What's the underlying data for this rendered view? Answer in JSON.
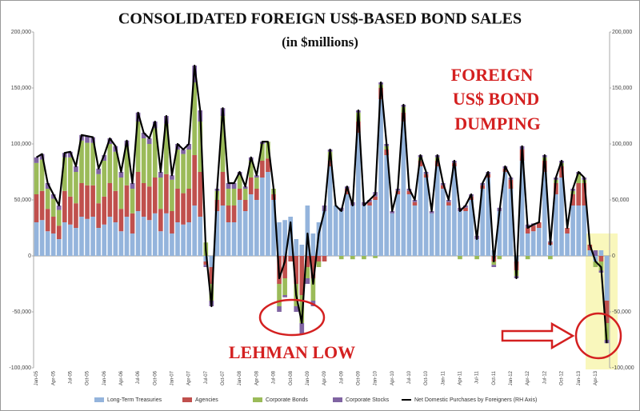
{
  "chart_data": {
    "type": "stacked_bar_line",
    "title": "CONSOLIDATED FOREIGN US$-BASED BOND SALES",
    "subtitle": "(in $millions)",
    "annotations": [
      "FOREIGN",
      "US$ BOND",
      "DUMPING",
      "LEHMAN LOW"
    ],
    "categories": [
      "Jan-05",
      null,
      null,
      "Apr-05",
      null,
      null,
      "Jul-05",
      null,
      null,
      "Oct-05",
      null,
      null,
      "Jan-06",
      null,
      null,
      "Apr-06",
      null,
      null,
      "Jul-06",
      null,
      null,
      "Oct-06",
      null,
      null,
      "Jan-07",
      null,
      null,
      "Apr-07",
      null,
      null,
      "Jul-07",
      null,
      null,
      "Oct-07",
      null,
      null,
      "Jan-08",
      null,
      null,
      "Apr-08",
      null,
      null,
      "Jul-08",
      null,
      null,
      "Oct-08",
      null,
      null,
      "Jan-09",
      null,
      null,
      "Apr-09",
      null,
      null,
      "Jul-09",
      null,
      null,
      "Oct-09",
      null,
      null,
      "Jan-10",
      null,
      null,
      "Apr-10",
      null,
      null,
      "Jul-10",
      null,
      null,
      "Oct-10",
      null,
      null,
      "Jan-11",
      null,
      null,
      "Apr-11",
      null,
      null,
      "Jul-11",
      null,
      null,
      "Oct-11",
      null,
      null,
      "Jan-12",
      null,
      null,
      "Apr-12",
      null,
      null,
      "Jul-12",
      null,
      null,
      "Oct-12",
      null,
      null,
      "Jan-13",
      null,
      null,
      "Apr-13",
      null,
      null
    ],
    "series": [
      {
        "name": "Long-Term Treasuries",
        "color": "#94b4dc",
        "values": [
          30000,
          32000,
          22000,
          20000,
          15000,
          30000,
          28000,
          25000,
          35000,
          33000,
          35000,
          25000,
          28000,
          35000,
          30000,
          22000,
          35000,
          20000,
          40000,
          35000,
          32000,
          38000,
          22000,
          38000,
          20000,
          30000,
          28000,
          30000,
          45000,
          35000,
          -5000,
          -10000,
          40000,
          45000,
          30000,
          30000,
          50000,
          40000,
          55000,
          50000,
          70000,
          75000,
          50000,
          30000,
          32000,
          35000,
          15000,
          10000,
          45000,
          20000,
          30000,
          40000,
          80000,
          45000,
          40000,
          55000,
          45000,
          110000,
          45000,
          45000,
          50000,
          140000,
          90000,
          38000,
          55000,
          120000,
          55000,
          45000,
          80000,
          70000,
          38000,
          80000,
          60000,
          45000,
          80000,
          40000,
          40000,
          50000,
          15000,
          60000,
          70000,
          5000,
          40000,
          75000,
          60000,
          -5000,
          85000,
          20000,
          22000,
          25000,
          75000,
          10000,
          55000,
          70000,
          20000,
          45000,
          45000,
          45000,
          5000,
          -5000,
          5000,
          -40000
        ]
      },
      {
        "name": "Agencies",
        "color": "#c0504d",
        "values": [
          25000,
          26000,
          20000,
          15000,
          12000,
          28000,
          25000,
          22000,
          30000,
          30000,
          28000,
          22000,
          25000,
          30000,
          28000,
          20000,
          28000,
          18000,
          35000,
          30000,
          30000,
          32000,
          20000,
          35000,
          20000,
          30000,
          28000,
          30000,
          45000,
          40000,
          -3000,
          -15000,
          10000,
          30000,
          15000,
          15000,
          10000,
          10000,
          15000,
          10000,
          15000,
          12000,
          5000,
          -25000,
          -20000,
          -5000,
          -25000,
          -35000,
          -10000,
          -20000,
          -5000,
          -5000,
          5000,
          0,
          0,
          5000,
          0,
          10000,
          0,
          3000,
          3000,
          10000,
          5000,
          0,
          3000,
          8000,
          3000,
          3000,
          5000,
          3000,
          0,
          5000,
          3000,
          3000,
          3000,
          0,
          3000,
          3000,
          0,
          3000,
          3000,
          -5000,
          0,
          3000,
          8000,
          -8000,
          10000,
          5000,
          5000,
          5000,
          10000,
          2000,
          10000,
          10000,
          5000,
          10000,
          20000,
          20000,
          5000,
          0,
          -5000,
          -20000
        ]
      },
      {
        "name": "Corporate Bonds",
        "color": "#9bbb59",
        "values": [
          28000,
          28000,
          18000,
          16000,
          14000,
          30000,
          35000,
          28000,
          38000,
          38000,
          38000,
          26000,
          32000,
          35000,
          35000,
          28000,
          35000,
          22000,
          45000,
          40000,
          38000,
          44000,
          28000,
          45000,
          28000,
          35000,
          35000,
          35000,
          65000,
          45000,
          12000,
          -15000,
          8000,
          50000,
          15000,
          15000,
          12000,
          10000,
          15000,
          10000,
          15000,
          15000,
          5000,
          -20000,
          -15000,
          0,
          -20000,
          -25000,
          -10000,
          -20000,
          -5000,
          0,
          8000,
          0,
          -3000,
          0,
          -3000,
          8000,
          -3000,
          0,
          -2000,
          3000,
          3000,
          0,
          0,
          5000,
          0,
          0,
          3000,
          0,
          0,
          3000,
          0,
          0,
          0,
          -3000,
          0,
          0,
          -3000,
          0,
          0,
          -3000,
          -3000,
          0,
          0,
          -5000,
          0,
          -3000,
          0,
          0,
          3000,
          -3000,
          3000,
          3000,
          0,
          3000,
          8000,
          3000,
          0,
          -5000,
          -8000,
          -15000
        ]
      },
      {
        "name": "Corporate Stocks",
        "color": "#8064a2",
        "values": [
          5000,
          5000,
          5000,
          4000,
          4000,
          4000,
          5000,
          5000,
          5000,
          6000,
          5000,
          5000,
          5000,
          5000,
          5000,
          5000,
          5000,
          5000,
          8000,
          5000,
          5000,
          6000,
          5000,
          7000,
          4000,
          5000,
          4000,
          5000,
          15000,
          10000,
          -2000,
          -5000,
          2000,
          7000,
          5000,
          5000,
          3000,
          2000,
          3000,
          2000,
          2000,
          0,
          0,
          -5000,
          -2000,
          0,
          -5000,
          -10000,
          -5000,
          -5000,
          0,
          5000,
          2000,
          0,
          3000,
          2000,
          3000,
          2000,
          3000,
          2000,
          4000,
          2000,
          2000,
          2000,
          2000,
          2000,
          2000,
          2000,
          2000,
          2000,
          2000,
          2000,
          2000,
          2000,
          2000,
          3000,
          2000,
          2000,
          3000,
          2000,
          2000,
          -2000,
          3000,
          2000,
          2000,
          -2000,
          3000,
          3000,
          2000,
          0,
          2000,
          1000,
          2000,
          2000,
          0,
          2000,
          2000,
          2000,
          0,
          5000,
          -2000,
          -3000
        ]
      },
      {
        "name": "Net Domestic Purchases by Foreigners (RH Axis)",
        "color": "#000000",
        "axis": "y2",
        "values": [
          88000,
          91000,
          65000,
          55000,
          45000,
          92000,
          93000,
          80000,
          108000,
          107000,
          106000,
          78000,
          90000,
          105000,
          98000,
          75000,
          103000,
          65000,
          128000,
          110000,
          105000,
          120000,
          75000,
          125000,
          72000,
          100000,
          95000,
          100000,
          170000,
          130000,
          5000,
          -45000,
          60000,
          132000,
          65000,
          65000,
          75000,
          62000,
          88000,
          72000,
          102000,
          102000,
          60000,
          -20000,
          -5000,
          30000,
          -35000,
          -60000,
          20000,
          -25000,
          20000,
          40000,
          95000,
          45000,
          40000,
          62000,
          45000,
          130000,
          45000,
          50000,
          55000,
          155000,
          100000,
          40000,
          60000,
          135000,
          60000,
          50000,
          90000,
          75000,
          40000,
          90000,
          65000,
          50000,
          85000,
          40000,
          45000,
          55000,
          15000,
          65000,
          75000,
          -5000,
          40000,
          80000,
          70000,
          -20000,
          98000,
          25000,
          28000,
          30000,
          90000,
          10000,
          70000,
          85000,
          25000,
          60000,
          75000,
          70000,
          10000,
          -5000,
          -10000,
          -78000
        ]
      }
    ],
    "ylim": [
      -100000,
      200000
    ],
    "yticks": [
      {
        "value": -100000,
        "label": "-100,000"
      },
      {
        "value": -50000,
        "label": "-50,000"
      },
      0,
      {
        "value": 50000,
        "label": "50,000"
      },
      {
        "value": 100000,
        "label": "100,000"
      },
      {
        "value": 150000,
        "label": "150,000"
      },
      {
        "value": 200000,
        "label": "200,000"
      }
    ],
    "y2lim": [
      -100000,
      200000
    ],
    "y2ticks": [
      {
        "value": -100000,
        "label": "-100,000"
      },
      {
        "value": -50000,
        "label": "-50,000"
      },
      0,
      {
        "value": 50000,
        "label": "50,000"
      },
      {
        "value": 100000,
        "label": "100,000"
      },
      {
        "value": 150000,
        "label": "150,000"
      },
      {
        "value": 200000,
        "label": "200,000"
      }
    ],
    "legend": "bottom",
    "grid": false
  }
}
